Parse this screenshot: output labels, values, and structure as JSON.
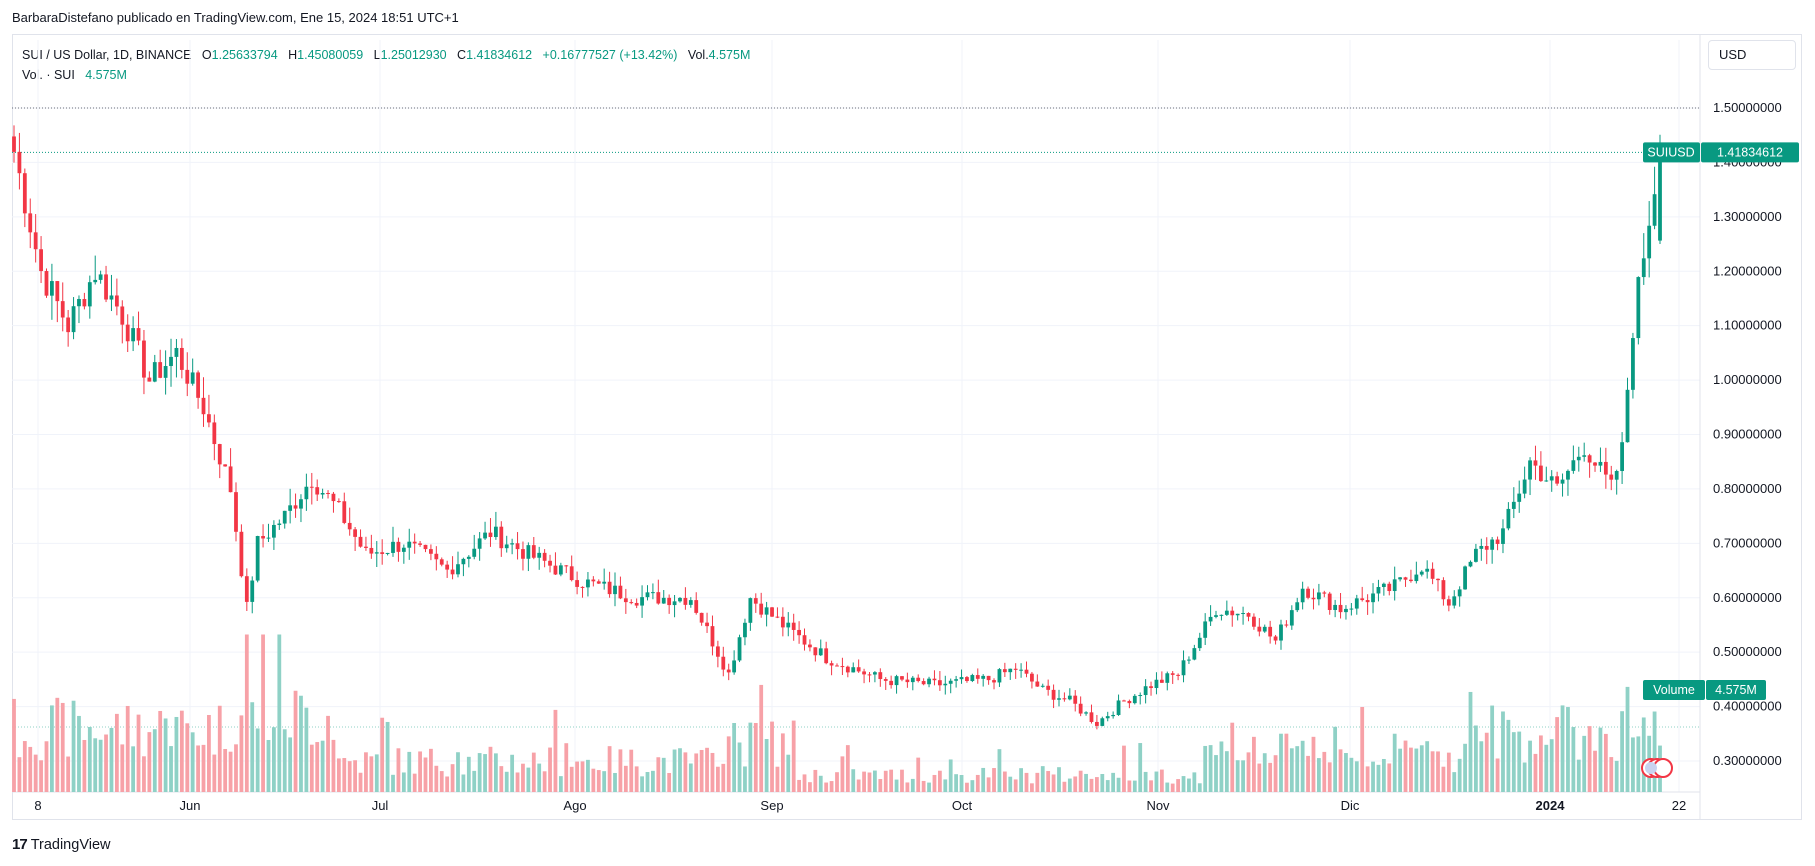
{
  "header": {
    "attribution": "BarbaraDistefano publicado en TradingView.com, Ene 15, 2024 18:51 UTC+1"
  },
  "legend": {
    "symbol": "SUI / US Dollar, 1D, BINANCE",
    "o_label": "O",
    "o_value": "1.25633794",
    "h_label": "H",
    "h_value": "1.45080059",
    "l_label": "L",
    "l_value": "1.25012930",
    "c_label": "C",
    "c_value": "1.41834612",
    "change": "+0.16777527 (+13.42%)",
    "vol_label": "Vol.",
    "vol_value": "4.575M",
    "vol_row_label": "Vol. · SUI",
    "vol_row_value": "4.575M"
  },
  "currency": "USD",
  "footer": {
    "logo_mark": "17",
    "logo_text": "TradingView"
  },
  "colors": {
    "up": "#089981",
    "down": "#f23645",
    "up_vol": "#8fd1c6",
    "down_vol": "#f7a1a7",
    "grid": "#f0f3fa"
  },
  "chart_data": {
    "type": "candlestick",
    "title": "SUI / US Dollar, 1D, BINANCE",
    "ylim": [
      0.25,
      1.55
    ],
    "y_ticks": [
      "1.50000000",
      "1.40000000",
      "1.30000000",
      "1.20000000",
      "1.10000000",
      "1.00000000",
      "0.90000000",
      "0.80000000",
      "0.70000000",
      "0.60000000",
      "0.50000000",
      "0.40000000",
      "0.30000000"
    ],
    "x_ticks": [
      "8",
      "Jun",
      "Jul",
      "Ago",
      "Sep",
      "Oct",
      "Nov",
      "Dic",
      "2024",
      "22"
    ],
    "grid": true,
    "last_price_label": "SUIUSD",
    "last_price": "1.41834612",
    "volume_label": "Volume",
    "volume_value": "4.575M",
    "price_waypoints": [
      [
        0,
        1.42
      ],
      [
        5,
        1.2
      ],
      [
        10,
        1.1
      ],
      [
        15,
        1.2
      ],
      [
        20,
        1.12
      ],
      [
        25,
        1.0
      ],
      [
        30,
        1.05
      ],
      [
        35,
        0.95
      ],
      [
        40,
        0.8
      ],
      [
        43,
        0.58
      ],
      [
        45,
        0.7
      ],
      [
        50,
        0.75
      ],
      [
        55,
        0.82
      ],
      [
        60,
        0.76
      ],
      [
        65,
        0.68
      ],
      [
        72,
        0.7
      ],
      [
        80,
        0.65
      ],
      [
        88,
        0.72
      ],
      [
        95,
        0.68
      ],
      [
        105,
        0.63
      ],
      [
        115,
        0.6
      ],
      [
        125,
        0.6
      ],
      [
        132,
        0.46
      ],
      [
        136,
        0.6
      ],
      [
        142,
        0.55
      ],
      [
        150,
        0.49
      ],
      [
        160,
        0.45
      ],
      [
        170,
        0.44
      ],
      [
        180,
        0.45
      ],
      [
        185,
        0.47
      ],
      [
        190,
        0.43
      ],
      [
        195,
        0.41
      ],
      [
        200,
        0.37
      ],
      [
        205,
        0.41
      ],
      [
        210,
        0.44
      ],
      [
        215,
        0.46
      ],
      [
        222,
        0.58
      ],
      [
        228,
        0.57
      ],
      [
        233,
        0.52
      ],
      [
        238,
        0.62
      ],
      [
        245,
        0.58
      ],
      [
        255,
        0.62
      ],
      [
        260,
        0.66
      ],
      [
        265,
        0.59
      ],
      [
        270,
        0.68
      ],
      [
        275,
        0.72
      ],
      [
        280,
        0.85
      ],
      [
        285,
        0.8
      ],
      [
        290,
        0.88
      ],
      [
        295,
        0.8
      ],
      [
        297,
        0.87
      ],
      [
        299,
        1.1
      ],
      [
        302,
        1.3
      ],
      [
        304,
        1.418
      ]
    ],
    "volume_profile": "higher volume at start (May), spikes in mid-June, low in Sep-Oct, rising from Nov, highest spikes in Dec and Jan"
  }
}
